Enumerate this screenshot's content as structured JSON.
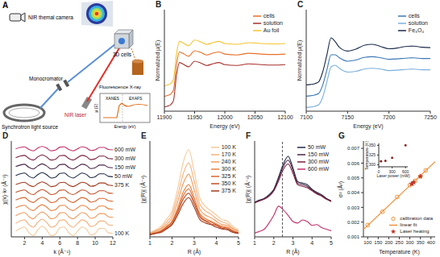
{
  "diagram": {
    "panel": "A",
    "camera": "NIR themal camera",
    "sample": "3D cells",
    "source": "Synchrotron light source",
    "monochromator": "Monocromator",
    "laser": "NIR laser",
    "detector": "Fluorescence X-ray",
    "inset": {
      "regions": [
        "XANES",
        "EXAFS"
      ],
      "y_label": "μ (E)",
      "x_label": "Energy (eV)"
    }
  },
  "chart_data": [
    {
      "panel": "B",
      "type": "line",
      "x_label": "Energy (eV)",
      "y_label": "Normalized μ(E)",
      "x": [
        11900,
        11905,
        11910,
        11915,
        11920,
        11925,
        11930,
        11940,
        11950,
        11960,
        11970,
        11980,
        11990,
        12000,
        12020,
        12040,
        12060,
        12080,
        12100
      ],
      "series": [
        {
          "name": "cells",
          "color": "#e8702a",
          "values": [
            0.25,
            0.27,
            0.3,
            0.4,
            1.0,
            1.3,
            1.27,
            1.2,
            1.33,
            1.29,
            1.23,
            1.27,
            1.3,
            1.25,
            1.23,
            1.27,
            1.25,
            1.24,
            1.25
          ]
        },
        {
          "name": "solution",
          "color": "#a8322d",
          "values": [
            0,
            0.02,
            0.05,
            0.15,
            0.75,
            1.05,
            1.02,
            0.95,
            1.08,
            1.04,
            0.98,
            1.02,
            1.05,
            1.0,
            0.98,
            1.02,
            1.0,
            0.99,
            1.0
          ]
        },
        {
          "name": "Au foil",
          "color": "#f4c430",
          "values": [
            0.5,
            0.52,
            0.55,
            0.65,
            1.25,
            1.55,
            1.52,
            1.45,
            1.58,
            1.54,
            1.48,
            1.52,
            1.55,
            1.5,
            1.48,
            1.52,
            1.5,
            1.49,
            1.5
          ]
        }
      ],
      "xlim": [
        11900,
        12100
      ],
      "xticks": [
        11900,
        11950,
        12000,
        12050,
        12100
      ],
      "ylim": [
        -0.1,
        2.3
      ],
      "tick_labels": "x",
      "legend": "upper right"
    },
    {
      "panel": "C",
      "type": "line",
      "x_label": "Energy (eV)",
      "y_label": "Normalized μ(E)",
      "x": [
        7100,
        7105,
        7110,
        7115,
        7120,
        7125,
        7130,
        7135,
        7140,
        7150,
        7160,
        7170,
        7180,
        7190,
        7200,
        7210,
        7220,
        7230,
        7240,
        7250
      ],
      "series": [
        {
          "name": "cells",
          "color": "#3b78b5",
          "values": [
            0.3,
            0.31,
            0.33,
            0.37,
            0.6,
            1.0,
            1.4,
            1.4,
            1.32,
            1.23,
            1.26,
            1.33,
            1.35,
            1.32,
            1.28,
            1.29,
            1.31,
            1.32,
            1.3,
            1.3
          ]
        },
        {
          "name": "solution",
          "color": "#7ab0de",
          "values": [
            0,
            0.01,
            0.03,
            0.07,
            0.28,
            0.68,
            1.08,
            1.12,
            1.04,
            0.94,
            0.96,
            1.02,
            1.04,
            1.02,
            0.98,
            0.99,
            1.01,
            1.02,
            1.0,
            1.0
          ]
        },
        {
          "name": "Fe₃O₄",
          "color": "#1b2b4b",
          "values": [
            0.6,
            0.61,
            0.63,
            0.68,
            0.95,
            1.4,
            1.85,
            1.75,
            1.6,
            1.5,
            1.55,
            1.65,
            1.68,
            1.62,
            1.56,
            1.58,
            1.62,
            1.63,
            1.6,
            1.59
          ]
        }
      ],
      "xlim": [
        7100,
        7250
      ],
      "xticks": [
        7100,
        7150,
        7200,
        7250
      ],
      "ylim": [
        -0.1,
        2.6
      ],
      "tick_labels": "x",
      "legend": "upper right"
    },
    {
      "panel": "D",
      "type": "line",
      "x_label": "k (Å⁻¹)",
      "y_label": "χ(k)·k² (Å⁻²)",
      "x": [
        1,
        1.5,
        2,
        2.5,
        3,
        3.5,
        4,
        4.5,
        5,
        5.5,
        6,
        6.5,
        7,
        7.5,
        8,
        8.5,
        9,
        9.5,
        10,
        10.5,
        11,
        11.5,
        12
      ],
      "series": [
        {
          "name": "100 K",
          "color": "#f7c99a",
          "values": [
            0.5,
            0.76,
            0.89,
            0.37,
            0.11,
            0.63,
            0.96,
            0.63,
            0.11,
            0.24,
            0.83,
            0.89,
            0.37,
            0.11,
            0.5,
            0.89,
            0.7,
            0.18,
            0.31,
            0.76,
            0.76,
            0.37,
            0.31
          ]
        },
        {
          "color": "#f5b07a",
          "values": [
            1.2,
            1.42,
            1.53,
            1.09,
            0.87,
            1.31,
            1.59,
            1.31,
            0.87,
            0.98,
            1.48,
            1.53,
            1.09,
            0.87,
            1.2,
            1.53,
            1.37,
            0.93,
            1.04,
            1.42,
            1.42,
            1.09,
            1.04
          ]
        },
        {
          "color": "#f29a5c",
          "values": [
            1.9,
            2.09,
            2.19,
            1.81,
            1.62,
            2.0,
            2.23,
            2.0,
            1.62,
            1.71,
            2.14,
            2.19,
            1.81,
            1.62,
            1.9,
            2.19,
            2.04,
            1.66,
            1.76,
            2.09,
            2.09,
            1.81,
            1.76
          ]
        },
        {
          "color": "#e8803f",
          "values": [
            2.6,
            2.76,
            2.84,
            2.52,
            2.36,
            2.68,
            2.88,
            2.68,
            2.36,
            2.44,
            2.8,
            2.84,
            2.52,
            2.36,
            2.6,
            2.84,
            2.72,
            2.4,
            2.48,
            2.76,
            2.76,
            2.52,
            2.48
          ]
        },
        {
          "color": "#d9662e",
          "values": [
            3.3,
            3.45,
            3.53,
            3.23,
            3.08,
            3.38,
            3.56,
            3.38,
            3.08,
            3.15,
            3.49,
            3.53,
            3.23,
            3.08,
            3.3,
            3.53,
            3.41,
            3.11,
            3.19,
            3.45,
            3.45,
            3.23,
            3.19
          ]
        },
        {
          "color": "#c24e24",
          "values": [
            4.0,
            4.14,
            4.21,
            3.93,
            3.79,
            4.07,
            4.25,
            4.07,
            3.79,
            3.86,
            4.18,
            4.21,
            3.93,
            3.79,
            4.0,
            4.21,
            4.11,
            3.83,
            3.9,
            4.14,
            4.14,
            3.93,
            3.9
          ]
        },
        {
          "name": "375 K",
          "color": "#a3381c",
          "values": [
            4.7,
            4.83,
            4.9,
            4.64,
            4.51,
            4.77,
            4.93,
            4.77,
            4.51,
            4.57,
            4.86,
            4.9,
            4.64,
            4.51,
            4.7,
            4.9,
            4.8,
            4.54,
            4.6,
            4.83,
            4.83,
            4.64,
            4.6
          ]
        },
        {
          "name": "50 mW",
          "color": "#1f2a44",
          "values": [
            5.5,
            5.65,
            5.73,
            5.43,
            5.28,
            5.58,
            5.76,
            5.58,
            5.28,
            5.35,
            5.69,
            5.73,
            5.43,
            5.28,
            5.5,
            5.73,
            5.61,
            5.31,
            5.39,
            5.65,
            5.65,
            5.43,
            5.39
          ]
        },
        {
          "name": "150 mW",
          "color": "#4a2545",
          "values": [
            6.3,
            6.44,
            6.51,
            6.23,
            6.09,
            6.37,
            6.55,
            6.37,
            6.09,
            6.16,
            6.48,
            6.51,
            6.23,
            6.09,
            6.3,
            6.51,
            6.41,
            6.13,
            6.2,
            6.44,
            6.44,
            6.23,
            6.2
          ]
        },
        {
          "name": "300 mW",
          "color": "#7a1f3d",
          "values": [
            7.1,
            7.24,
            7.31,
            7.03,
            6.89,
            7.17,
            7.35,
            7.17,
            6.89,
            6.96,
            7.28,
            7.31,
            7.03,
            6.89,
            7.1,
            7.31,
            7.21,
            6.93,
            7.0,
            7.24,
            7.24,
            7.03,
            7.0
          ]
        },
        {
          "name": "600 mW",
          "color": "#c2306a",
          "values": [
            7.9,
            8.02,
            8.08,
            7.84,
            7.72,
            7.96,
            8.11,
            7.96,
            7.72,
            7.78,
            8.05,
            8.08,
            7.84,
            7.72,
            7.9,
            8.08,
            7.99,
            7.75,
            7.81,
            8.02,
            8.02,
            7.84,
            7.81
          ]
        }
      ],
      "xlim": [
        0.5,
        12
      ],
      "xticks": [
        2,
        4,
        6,
        8,
        10,
        12
      ],
      "ylim": [
        0,
        8.6
      ],
      "tick_labels": "x"
    },
    {
      "panel": "E",
      "type": "line",
      "x_label": "R (Å)",
      "y_label": "|χ(R)| (Å⁻³)",
      "x": [
        1,
        1.25,
        1.5,
        1.75,
        2,
        2.25,
        2.5,
        2.75,
        3,
        3.25,
        3.5,
        3.75,
        4,
        4.25,
        4.5,
        4.75,
        5
      ],
      "series": [
        {
          "name": "100 K",
          "color": "#f7c99a",
          "values": [
            0.05,
            0.08,
            0.12,
            0.2,
            0.3,
            0.55,
            0.85,
            1.0,
            0.75,
            0.45,
            0.35,
            0.3,
            0.25,
            0.2,
            0.18,
            0.12,
            0.08
          ]
        },
        {
          "name": "170 K",
          "color": "#f5b07a",
          "values": [
            0.04,
            0.07,
            0.1,
            0.17,
            0.26,
            0.47,
            0.72,
            0.85,
            0.64,
            0.38,
            0.3,
            0.26,
            0.21,
            0.17,
            0.15,
            0.1,
            0.07
          ]
        },
        {
          "name": "240 K",
          "color": "#f29a5c",
          "values": [
            0.04,
            0.06,
            0.09,
            0.14,
            0.22,
            0.4,
            0.61,
            0.72,
            0.54,
            0.32,
            0.25,
            0.22,
            0.18,
            0.14,
            0.13,
            0.09,
            0.06
          ]
        },
        {
          "name": "300 K",
          "color": "#e8803f",
          "values": [
            0.03,
            0.05,
            0.07,
            0.12,
            0.18,
            0.33,
            0.51,
            0.6,
            0.45,
            0.27,
            0.21,
            0.18,
            0.15,
            0.12,
            0.11,
            0.07,
            0.05
          ]
        },
        {
          "name": "325 K",
          "color": "#d9662e",
          "values": [
            0.03,
            0.04,
            0.07,
            0.11,
            0.17,
            0.3,
            0.47,
            0.55,
            0.41,
            0.25,
            0.19,
            0.17,
            0.14,
            0.11,
            0.1,
            0.07,
            0.04
          ]
        },
        {
          "name": "350 K",
          "color": "#c24e24",
          "values": [
            0.03,
            0.04,
            0.06,
            0.1,
            0.15,
            0.28,
            0.43,
            0.5,
            0.38,
            0.23,
            0.18,
            0.15,
            0.13,
            0.1,
            0.09,
            0.06,
            0.04
          ]
        },
        {
          "name": "375 K",
          "color": "#a3381c",
          "values": [
            0.02,
            0.04,
            0.05,
            0.09,
            0.14,
            0.25,
            0.38,
            0.45,
            0.34,
            0.2,
            0.16,
            0.14,
            0.11,
            0.09,
            0.08,
            0.05,
            0.04
          ]
        }
      ],
      "xlim": [
        1,
        5
      ],
      "xticks": [
        1,
        2,
        3,
        4,
        5
      ],
      "ylim": [
        0,
        1.1
      ],
      "tick_labels": "x",
      "legend": "upper right"
    },
    {
      "panel": "F",
      "type": "line",
      "x_label": "R (Å)",
      "y_label": "|χ(R)| (Å⁻³)",
      "x": [
        1,
        1.25,
        1.5,
        1.75,
        2,
        2.25,
        2.5,
        2.75,
        3,
        3.25,
        3.5,
        3.75,
        4,
        4.25,
        4.5,
        4.75,
        5
      ],
      "series": [
        {
          "name": "50 mW",
          "color": "#1f2a44",
          "values": [
            0.05,
            0.08,
            0.1,
            0.15,
            0.22,
            0.38,
            0.55,
            0.65,
            0.5,
            0.32,
            0.3,
            0.28,
            0.22,
            0.18,
            0.15,
            0.1,
            0.07
          ]
        },
        {
          "name": "150 mW",
          "color": "#4a2545",
          "values": [
            0.05,
            0.07,
            0.1,
            0.14,
            0.21,
            0.36,
            0.52,
            0.6,
            0.47,
            0.3,
            0.28,
            0.26,
            0.21,
            0.17,
            0.14,
            0.1,
            0.07
          ]
        },
        {
          "name": "300 mW",
          "color": "#7a1f3d",
          "values": [
            0.04,
            0.07,
            0.09,
            0.13,
            0.2,
            0.33,
            0.48,
            0.55,
            0.43,
            0.28,
            0.26,
            0.24,
            0.2,
            0.16,
            0.13,
            0.09,
            0.06
          ]
        },
        {
          "name": "600 mW",
          "color": "#c2306a",
          "values": [
            -0.35,
            -0.33,
            -0.3,
            -0.22,
            -0.12,
            0.0,
            -0.05,
            -0.12,
            -0.2,
            -0.22,
            -0.18,
            -0.2,
            -0.25,
            -0.24,
            -0.28,
            -0.3,
            -0.32
          ]
        }
      ],
      "vline": 2.45,
      "xlim": [
        1,
        5
      ],
      "xticks": [
        1,
        2,
        3,
        4,
        5
      ],
      "ylim": [
        -0.4,
        0.85
      ],
      "tick_labels": "x",
      "legend": "upper right"
    },
    {
      "panel": "G",
      "type": "scatter",
      "x_label": "Temperature (K)",
      "y_label": "σ² (Å²)",
      "series": [
        {
          "name": "calibration data",
          "color": "#f0913a",
          "marker": "hollow_circle",
          "x": [
            100,
            170,
            240,
            300,
            325,
            350,
            375
          ],
          "values": [
            0.0018,
            0.0027,
            0.0037,
            0.0045,
            0.0048,
            0.0051,
            0.0055
          ]
        },
        {
          "name": "linear fit",
          "type": "line",
          "color": "#f0913a",
          "line_style": "solid",
          "x": [
            80,
            420
          ],
          "values": [
            0.0015,
            0.0061
          ]
        },
        {
          "name": "Laser heating",
          "color": "#c0392b",
          "marker": "star",
          "x": [
            309,
            310,
            318,
            350
          ],
          "values": [
            0.0046,
            0.0046,
            0.0047,
            0.0051
          ]
        }
      ],
      "xlim": [
        80,
        420
      ],
      "xticks": [
        100,
        150,
        200,
        250,
        300,
        350,
        400
      ],
      "ylim": [
        0.001,
        0.0075
      ],
      "yticks": [
        0.001,
        0.002,
        0.003,
        0.004,
        0.005,
        0.006,
        0.007
      ],
      "legend": "lower right",
      "inset": {
        "type": "scatter",
        "x_label": "Laser power (mW)",
        "y_label": "Temperature (K)",
        "x": [
          50,
          150,
          300,
          600
        ],
        "values": [
          309,
          310,
          318,
          350
        ],
        "color": "#8b1a1a",
        "marker": "circle",
        "xlim": [
          0,
          650
        ],
        "xticks": [
          0,
          300,
          600
        ],
        "ylim": [
          295,
          355
        ],
        "yticks": [
          300,
          325,
          350
        ]
      }
    }
  ]
}
